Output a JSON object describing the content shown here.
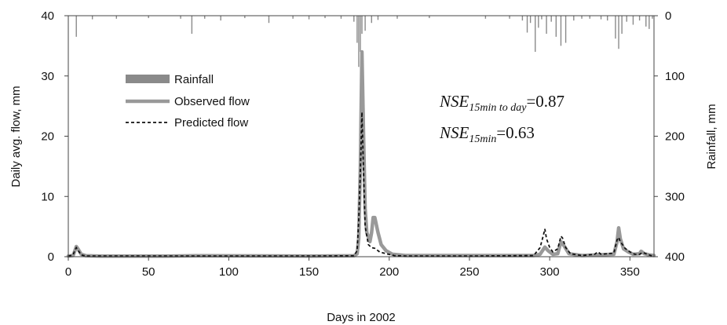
{
  "chart_data": {
    "type": "line",
    "xlabel": "Days in 2002",
    "ylabel_left": "Daily avg. flow, mm",
    "ylabel_right": "Rainfall, mm",
    "xlim": [
      0,
      365
    ],
    "ylim_left": [
      0,
      40
    ],
    "ylim_right": [
      0,
      400
    ],
    "right_axis_inverted": true,
    "grid": false,
    "legend_position": "upper-left",
    "x_ticks": [
      "0",
      "50",
      "100",
      "150",
      "200",
      "250",
      "300",
      "350"
    ],
    "y_left_ticks": [
      "0",
      "10",
      "20",
      "30",
      "40"
    ],
    "y_right_ticks": [
      "0",
      "100",
      "200",
      "300",
      "400"
    ],
    "colors": {
      "rainfall": "#8a8a8a",
      "observed": "#999999",
      "predicted": "#111111",
      "axis": "#444444"
    },
    "legend": [
      {
        "label": "Rainfall",
        "style": "bar"
      },
      {
        "label": "Observed flow",
        "style": "solid"
      },
      {
        "label": "Predicted flow",
        "style": "dashed"
      }
    ],
    "annotations": [
      {
        "base": "NSE",
        "subscript": "15min to day",
        "value": "=0.87"
      },
      {
        "base": "NSE",
        "subscript": "15min",
        "value": "=0.63"
      }
    ],
    "series": [
      {
        "name": "Observed flow",
        "axis": "left",
        "points": [
          [
            0,
            0.1
          ],
          [
            3,
            0.2
          ],
          [
            4,
            0.9
          ],
          [
            5,
            1.7
          ],
          [
            6,
            1.3
          ],
          [
            8,
            0.4
          ],
          [
            11,
            0.15
          ],
          [
            20,
            0.1
          ],
          [
            60,
            0.1
          ],
          [
            80,
            0.15
          ],
          [
            150,
            0.1
          ],
          [
            178,
            0.15
          ],
          [
            180,
            0.5
          ],
          [
            181,
            3
          ],
          [
            182,
            15
          ],
          [
            183,
            34
          ],
          [
            184,
            20
          ],
          [
            185,
            8
          ],
          [
            186,
            4
          ],
          [
            188,
            2.5
          ],
          [
            189,
            4
          ],
          [
            190,
            6.5
          ],
          [
            191,
            6.5
          ],
          [
            193,
            4
          ],
          [
            195,
            2
          ],
          [
            198,
            1
          ],
          [
            202,
            0.4
          ],
          [
            210,
            0.2
          ],
          [
            250,
            0.2
          ],
          [
            290,
            0.2
          ],
          [
            294,
            0.4
          ],
          [
            297,
            1.6
          ],
          [
            299,
            1.0
          ],
          [
            302,
            0.4
          ],
          [
            305,
            0.5
          ],
          [
            307,
            2.5
          ],
          [
            309,
            1.8
          ],
          [
            312,
            0.5
          ],
          [
            320,
            0.2
          ],
          [
            330,
            0.3
          ],
          [
            340,
            0.4
          ],
          [
            342,
            2.5
          ],
          [
            343,
            4.8
          ],
          [
            344,
            3
          ],
          [
            346,
            1.3
          ],
          [
            349,
            0.8
          ],
          [
            352,
            0.4
          ],
          [
            356,
            0.5
          ],
          [
            357,
            0.9
          ],
          [
            359,
            0.5
          ],
          [
            362,
            0.3
          ],
          [
            365,
            0.2
          ]
        ]
      },
      {
        "name": "Predicted flow",
        "axis": "left",
        "points": [
          [
            0,
            0.1
          ],
          [
            3,
            0.3
          ],
          [
            4,
            1.0
          ],
          [
            5,
            1.5
          ],
          [
            6,
            1.1
          ],
          [
            8,
            0.3
          ],
          [
            11,
            0.1
          ],
          [
            60,
            0.1
          ],
          [
            150,
            0.1
          ],
          [
            178,
            0.15
          ],
          [
            180,
            1.0
          ],
          [
            181,
            6
          ],
          [
            182,
            14
          ],
          [
            183,
            24
          ],
          [
            184,
            14
          ],
          [
            185,
            5
          ],
          [
            187,
            2
          ],
          [
            189,
            1.5
          ],
          [
            191,
            1.4
          ],
          [
            194,
            0.8
          ],
          [
            198,
            0.5
          ],
          [
            203,
            0.2
          ],
          [
            210,
            0.1
          ],
          [
            250,
            0.1
          ],
          [
            290,
            0.2
          ],
          [
            294,
            1.5
          ],
          [
            296,
            3.5
          ],
          [
            297,
            4.6
          ],
          [
            298,
            3
          ],
          [
            300,
            1.5
          ],
          [
            302,
            0.8
          ],
          [
            305,
            1.3
          ],
          [
            307,
            3.4
          ],
          [
            308,
            3.1
          ],
          [
            310,
            1.5
          ],
          [
            313,
            0.5
          ],
          [
            320,
            0.2
          ],
          [
            328,
            0.4
          ],
          [
            330,
            0.8
          ],
          [
            332,
            0.4
          ],
          [
            340,
            0.6
          ],
          [
            342,
            2.8
          ],
          [
            343,
            3.2
          ],
          [
            344,
            2.5
          ],
          [
            347,
            1.4
          ],
          [
            350,
            0.8
          ],
          [
            353,
            0.4
          ],
          [
            356,
            0.4
          ],
          [
            358,
            0.7
          ],
          [
            360,
            0.5
          ],
          [
            363,
            0.2
          ],
          [
            365,
            0.1
          ]
        ]
      },
      {
        "name": "Rainfall",
        "axis": "right",
        "bars": [
          [
            5,
            35
          ],
          [
            15,
            6
          ],
          [
            30,
            5
          ],
          [
            50,
            4
          ],
          [
            70,
            5
          ],
          [
            77,
            30
          ],
          [
            85,
            5
          ],
          [
            95,
            8
          ],
          [
            110,
            4
          ],
          [
            125,
            12
          ],
          [
            140,
            5
          ],
          [
            150,
            6
          ],
          [
            160,
            4
          ],
          [
            170,
            5
          ],
          [
            178,
            10
          ],
          [
            180,
            45
          ],
          [
            181,
            85
          ],
          [
            182,
            60
          ],
          [
            183,
            30
          ],
          [
            185,
            25
          ],
          [
            189,
            12
          ],
          [
            193,
            7
          ],
          [
            205,
            5
          ],
          [
            225,
            4
          ],
          [
            260,
            5
          ],
          [
            275,
            5
          ],
          [
            283,
            8
          ],
          [
            286,
            28
          ],
          [
            288,
            12
          ],
          [
            291,
            60
          ],
          [
            293,
            20
          ],
          [
            295,
            6
          ],
          [
            298,
            30
          ],
          [
            301,
            10
          ],
          [
            304,
            35
          ],
          [
            307,
            50
          ],
          [
            310,
            45
          ],
          [
            315,
            8
          ],
          [
            320,
            5
          ],
          [
            325,
            5
          ],
          [
            332,
            6
          ],
          [
            336,
            8
          ],
          [
            341,
            38
          ],
          [
            343,
            55
          ],
          [
            345,
            30
          ],
          [
            348,
            10
          ],
          [
            352,
            15
          ],
          [
            356,
            8
          ],
          [
            360,
            18
          ],
          [
            362,
            22
          ],
          [
            364,
            5
          ]
        ]
      }
    ]
  }
}
